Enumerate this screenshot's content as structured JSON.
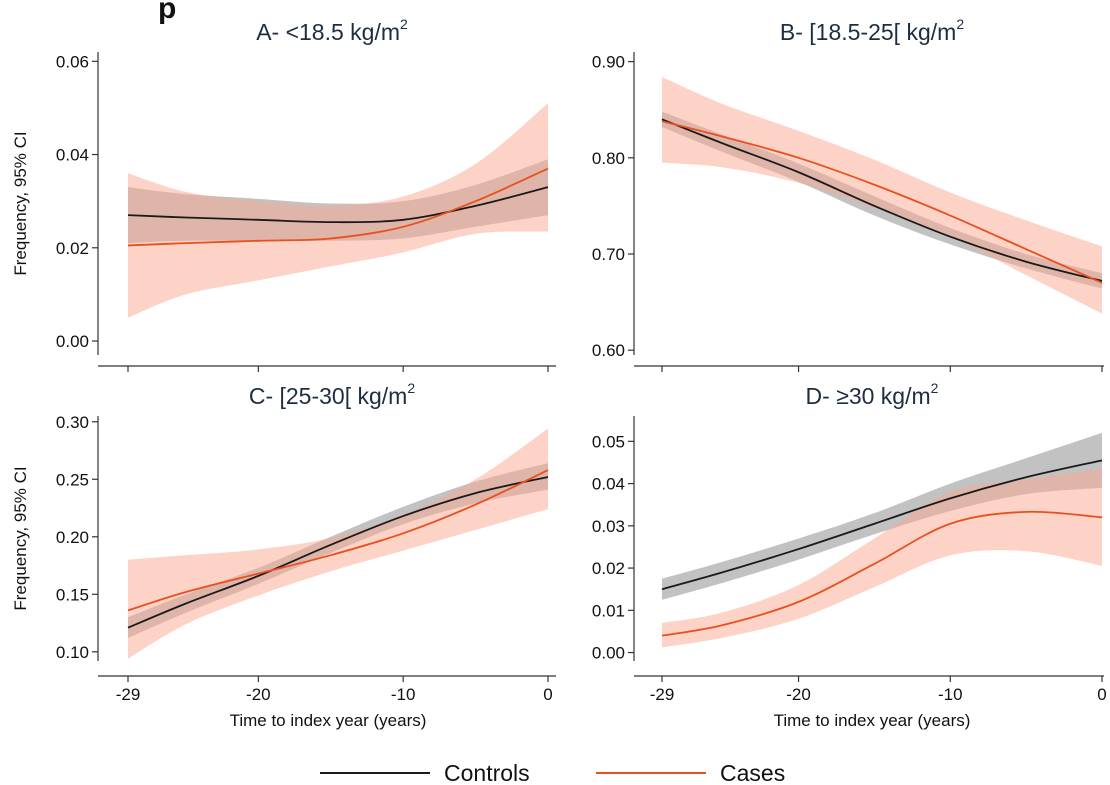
{
  "top_label": "p",
  "legend": [
    {
      "label": "Controls",
      "color": "#1a1a1a"
    },
    {
      "label": "Cases",
      "color": "#e8501e"
    }
  ],
  "colors": {
    "controls_line": "#1a1a1a",
    "controls_band": "#9a9a9a",
    "cases_line": "#e8501e",
    "cases_band": "#fca890"
  },
  "chart_data": [
    {
      "type": "line",
      "title": "A- <18.5 kg/m",
      "title_sup": "2",
      "ylabel": "Frequency, 95% CI",
      "xlabel": "",
      "xlim": [
        -29,
        0
      ],
      "ylim": [
        -0.003,
        0.062
      ],
      "yticks": [
        0.0,
        0.02,
        0.04,
        0.06
      ],
      "ytick_labels": [
        "0.00",
        "0.02",
        "0.04",
        "0.06"
      ],
      "xticks": [
        -29,
        -20,
        -10,
        0
      ],
      "xtick_labels": [],
      "series": [
        {
          "name": "Controls",
          "x": [
            -29,
            -25,
            -20,
            -15,
            -10,
            -5,
            0
          ],
          "y": [
            0.027,
            0.0265,
            0.026,
            0.0255,
            0.026,
            0.029,
            0.033
          ],
          "lower": [
            0.021,
            0.0215,
            0.0215,
            0.0215,
            0.022,
            0.0245,
            0.027
          ],
          "upper": [
            0.033,
            0.0315,
            0.0305,
            0.0295,
            0.03,
            0.0335,
            0.039
          ]
        },
        {
          "name": "Cases",
          "x": [
            -29,
            -25,
            -20,
            -15,
            -10,
            -5,
            0
          ],
          "y": [
            0.0205,
            0.021,
            0.0215,
            0.022,
            0.0245,
            0.03,
            0.037
          ],
          "lower": [
            0.005,
            0.01,
            0.013,
            0.016,
            0.019,
            0.023,
            0.0235
          ],
          "upper": [
            0.036,
            0.032,
            0.03,
            0.029,
            0.031,
            0.038,
            0.051
          ]
        }
      ]
    },
    {
      "type": "line",
      "title": "B- [18.5-25[ kg/m",
      "title_sup": "2",
      "ylabel": "",
      "xlabel": "",
      "xlim": [
        -29,
        0
      ],
      "ylim": [
        0.595,
        0.91
      ],
      "yticks": [
        0.6,
        0.7,
        0.8,
        0.9
      ],
      "ytick_labels": [
        "0.60",
        "0.70",
        "0.80",
        "0.90"
      ],
      "xticks": [
        -29,
        -20,
        -10,
        0
      ],
      "xtick_labels": [],
      "series": [
        {
          "name": "Controls",
          "x": [
            -29,
            -25,
            -20,
            -15,
            -10,
            -5,
            0
          ],
          "y": [
            0.84,
            0.815,
            0.785,
            0.75,
            0.718,
            0.692,
            0.672
          ],
          "lower": [
            0.832,
            0.806,
            0.775,
            0.74,
            0.71,
            0.685,
            0.664
          ],
          "upper": [
            0.848,
            0.824,
            0.794,
            0.76,
            0.727,
            0.7,
            0.68
          ]
        },
        {
          "name": "Cases",
          "x": [
            -29,
            -25,
            -20,
            -15,
            -10,
            -5,
            0
          ],
          "y": [
            0.838,
            0.822,
            0.8,
            0.772,
            0.74,
            0.705,
            0.67
          ],
          "lower": [
            0.795,
            0.79,
            0.774,
            0.748,
            0.718,
            0.678,
            0.638
          ],
          "upper": [
            0.884,
            0.856,
            0.828,
            0.798,
            0.764,
            0.735,
            0.708
          ]
        }
      ]
    },
    {
      "type": "line",
      "title": "C- [25-30[ kg/m",
      "title_sup": "2",
      "ylabel": "Frequency, 95% CI",
      "xlabel": "Time to index year (years)",
      "xlim": [
        -29,
        0
      ],
      "ylim": [
        0.092,
        0.305
      ],
      "yticks": [
        0.1,
        0.15,
        0.2,
        0.25,
        0.3
      ],
      "ytick_labels": [
        "0.10",
        "0.15",
        "0.20",
        "0.25",
        "0.30"
      ],
      "xticks": [
        -29,
        -20,
        -10,
        0
      ],
      "xtick_labels": [
        "-29",
        "-20",
        "-10",
        "0"
      ],
      "series": [
        {
          "name": "Controls",
          "x": [
            -29,
            -25,
            -20,
            -15,
            -10,
            -5,
            0
          ],
          "y": [
            0.121,
            0.142,
            0.166,
            0.193,
            0.218,
            0.238,
            0.252
          ],
          "lower": [
            0.112,
            0.134,
            0.159,
            0.186,
            0.211,
            0.229,
            0.241
          ],
          "upper": [
            0.13,
            0.15,
            0.173,
            0.2,
            0.226,
            0.248,
            0.264
          ]
        },
        {
          "name": "Cases",
          "x": [
            -29,
            -25,
            -20,
            -15,
            -10,
            -5,
            0
          ],
          "y": [
            0.136,
            0.152,
            0.168,
            0.184,
            0.203,
            0.228,
            0.258
          ],
          "lower": [
            0.094,
            0.124,
            0.149,
            0.17,
            0.188,
            0.206,
            0.224
          ],
          "upper": [
            0.18,
            0.184,
            0.189,
            0.199,
            0.219,
            0.25,
            0.294
          ]
        }
      ]
    },
    {
      "type": "line",
      "title": "D- ≥30 kg/m",
      "title_sup": "2",
      "ylabel": "",
      "xlabel": "Time to index year (years)",
      "xlim": [
        -29,
        0
      ],
      "ylim": [
        -0.002,
        0.056
      ],
      "yticks": [
        0.0,
        0.01,
        0.02,
        0.03,
        0.04,
        0.05
      ],
      "ytick_labels": [
        "0.00",
        "0.01",
        "0.02",
        "0.03",
        "0.04",
        "0.05"
      ],
      "xticks": [
        -29,
        -20,
        -10,
        0
      ],
      "xtick_labels": [
        "-29",
        "-20",
        "-10",
        "0"
      ],
      "series": [
        {
          "name": "Controls",
          "x": [
            -29,
            -25,
            -20,
            -15,
            -10,
            -5,
            0
          ],
          "y": [
            0.015,
            0.019,
            0.0245,
            0.0305,
            0.0365,
            0.0415,
            0.0455
          ],
          "lower": [
            0.0125,
            0.0165,
            0.022,
            0.028,
            0.0335,
            0.0375,
            0.039
          ],
          "upper": [
            0.0175,
            0.0215,
            0.027,
            0.033,
            0.04,
            0.046,
            0.052
          ]
        },
        {
          "name": "Cases",
          "x": [
            -29,
            -25,
            -20,
            -15,
            -10,
            -5,
            0
          ],
          "y": [
            0.004,
            0.0065,
            0.012,
            0.021,
            0.0305,
            0.0333,
            0.032
          ],
          "lower": [
            0.0012,
            0.0035,
            0.008,
            0.0155,
            0.023,
            0.024,
            0.0205
          ],
          "upper": [
            0.007,
            0.0095,
            0.016,
            0.027,
            0.038,
            0.041,
            0.0435
          ]
        }
      ]
    }
  ]
}
